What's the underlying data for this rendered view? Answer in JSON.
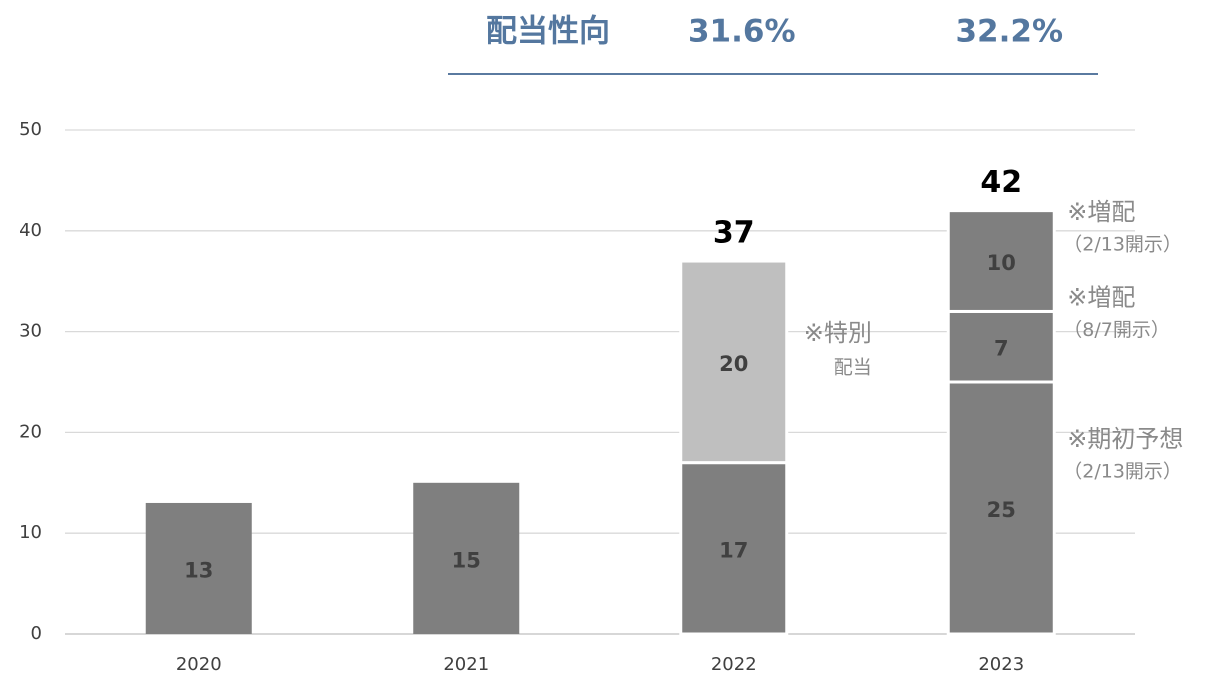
{
  "chart_data": {
    "type": "stacked_bar",
    "header": {
      "label": "配当性向",
      "values": [
        31.6,
        32.2
      ],
      "value_labels": [
        "31.6%",
        "32.2%"
      ]
    },
    "categories": [
      "2020",
      "2021",
      "2022",
      "2023"
    ],
    "series": [
      {
        "color": "#7f7f7f",
        "values": [
          13,
          15,
          17,
          25
        ]
      },
      {
        "color": "#bfbfbf",
        "values": [
          null,
          null,
          20,
          null
        ]
      },
      {
        "color": "#7f7f7f",
        "values": [
          null,
          null,
          null,
          7
        ]
      },
      {
        "color": "#7f7f7f",
        "values": [
          null,
          null,
          null,
          10
        ]
      }
    ],
    "totals": [
      null,
      null,
      37,
      42
    ],
    "annotations": [
      [
        "※特別",
        "配当"
      ],
      [
        "※増配",
        "（8/7開示）"
      ],
      [
        "※増配",
        "（2/13開示）"
      ],
      [
        "※期初予想",
        "（2/13開示）"
      ]
    ],
    "ylim": [
      0,
      50
    ],
    "yticks": [
      0,
      10,
      20,
      30,
      40,
      50
    ],
    "grid": true
  }
}
